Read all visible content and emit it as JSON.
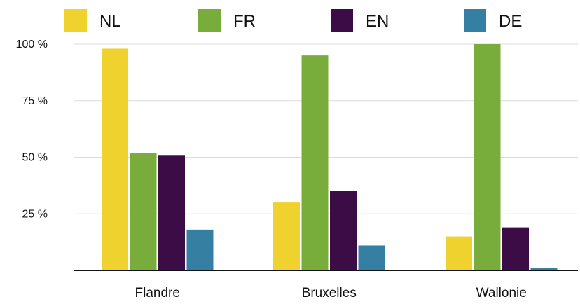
{
  "chart_data": {
    "type": "bar",
    "categories": [
      "Flandre",
      "Bruxelles",
      "Wallonie"
    ],
    "series": [
      {
        "name": "NL",
        "color": "#f0d22e",
        "values": [
          98,
          30,
          15
        ]
      },
      {
        "name": "FR",
        "color": "#78ad3c",
        "values": [
          52,
          95,
          100
        ]
      },
      {
        "name": "EN",
        "color": "#3c0c47",
        "values": [
          51,
          35,
          19
        ]
      },
      {
        "name": "DE",
        "color": "#357fa3",
        "values": [
          18,
          11,
          1
        ]
      }
    ],
    "y_ticks": [
      {
        "value": 25,
        "label": "25 %"
      },
      {
        "value": 50,
        "label": "50 %"
      },
      {
        "value": 75,
        "label": "75 %"
      },
      {
        "value": 100,
        "label": "100 %"
      }
    ],
    "ylim": [
      0,
      100
    ],
    "grid": "horizontal",
    "legend_position": "top",
    "title": "",
    "xlabel": "",
    "ylabel": ""
  }
}
